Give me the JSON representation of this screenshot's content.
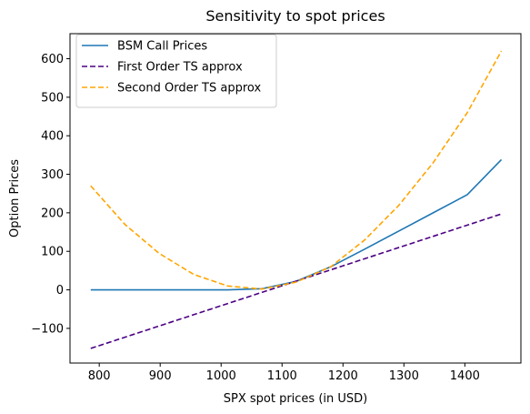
{
  "chart_data": {
    "type": "line",
    "title": "Sensitivity to spot prices",
    "xlabel": "SPX spot prices (in USD)",
    "ylabel": "Option Prices",
    "xlim": [
      752,
      1492
    ],
    "ylim": [
      -190,
      665
    ],
    "xticks": [
      800,
      900,
      1000,
      1100,
      1200,
      1300,
      1400
    ],
    "yticks": [
      -100,
      0,
      100,
      200,
      300,
      400,
      500,
      600
    ],
    "grid": false,
    "legend": "top-left",
    "series": [
      {
        "name": "BSM Call Prices",
        "color": "#1f77b4",
        "dash": "solid",
        "x": [
          786,
          842,
          898,
          955,
          1011,
          1067,
          1123,
          1180,
          1236,
          1292,
          1348,
          1404,
          1460
        ],
        "y": [
          0,
          0,
          0,
          0,
          0,
          3,
          22,
          60,
          106,
          153,
          200,
          247,
          338
        ]
      },
      {
        "name": "First Order TS approx",
        "color": "#4b0082",
        "dash": "dashed",
        "x": [
          786,
          1460
        ],
        "y": [
          -152,
          197
        ]
      },
      {
        "name": "Second Order TS approx",
        "color": "#ffa500",
        "dash": "dashed",
        "x": [
          786,
          842,
          898,
          955,
          1011,
          1067,
          1123,
          1180,
          1236,
          1292,
          1348,
          1404,
          1460
        ],
        "y": [
          270,
          170,
          95,
          40,
          10,
          2,
          20,
          60,
          130,
          220,
          330,
          460,
          620
        ]
      }
    ]
  }
}
